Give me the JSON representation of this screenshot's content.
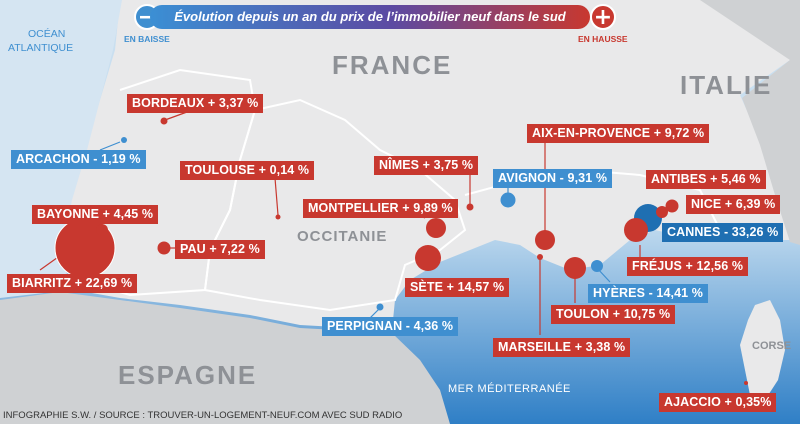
{
  "header": {
    "title": "Évolution depuis un an du prix de l’immobilier neuf dans le sud",
    "minus_symbol": "−",
    "plus_symbol": "+",
    "baisse_label": "EN BAISSE",
    "hausse_label": "EN HAUSSE",
    "colors": {
      "hausse": "#c8382f",
      "baisse": "#3f8fd0"
    }
  },
  "regions": {
    "france": "FRANCE",
    "italie": "ITALIE",
    "espagne": "ESPAGNE",
    "occitanie": "OCCITANIE",
    "corse": "CORSE"
  },
  "seas": {
    "atlantic_line1": "OCÉAN",
    "atlantic_line2": "ATLANTIQUE",
    "mediterranean": "MER MÉDITERRANÉE"
  },
  "cities": [
    {
      "label": "BORDEAUX + 3,37 %",
      "trend": "up",
      "change_pct": 3.37
    },
    {
      "label": "ARCACHON  - 1,19 %",
      "trend": "down",
      "change_pct": -1.19
    },
    {
      "label": "TOULOUSE + 0,14 %",
      "trend": "up",
      "change_pct": 0.14
    },
    {
      "label": "NÎMES + 3,75 %",
      "trend": "up",
      "change_pct": 3.75
    },
    {
      "label": "AIX-EN-PROVENCE + 9,72 %",
      "trend": "up",
      "change_pct": 9.72
    },
    {
      "label": "AVIGNON - 9,31 %",
      "trend": "down",
      "change_pct": -9.31
    },
    {
      "label": "ANTIBES + 5,46 %",
      "trend": "up",
      "change_pct": 5.46
    },
    {
      "label": "NICE + 6,39 %",
      "trend": "up",
      "change_pct": 6.39
    },
    {
      "label": "CANNES - 33,26 %",
      "trend": "down",
      "change_pct": -33.26
    },
    {
      "label": "BAYONNE + 4,45 %",
      "trend": "up",
      "change_pct": 4.45
    },
    {
      "label": "MONTPELLIER + 9,89 %",
      "trend": "up",
      "change_pct": 9.89
    },
    {
      "label": "PAU + 7,22 %",
      "trend": "up",
      "change_pct": 7.22
    },
    {
      "label": "BIARRITZ + 22,69 %",
      "trend": "up",
      "change_pct": 22.69
    },
    {
      "label": "SÈTE + 14,57 %",
      "trend": "up",
      "change_pct": 14.57
    },
    {
      "label": "FRÉJUS + 12,56 %",
      "trend": "up",
      "change_pct": 12.56
    },
    {
      "label": "HYÈRES - 14,41 %",
      "trend": "down",
      "change_pct": -14.41
    },
    {
      "label": "TOULON + 10,75 %",
      "trend": "up",
      "change_pct": 10.75
    },
    {
      "label": "PERPIGNAN - 4,36 %",
      "trend": "down",
      "change_pct": -4.36
    },
    {
      "label": "MARSEILLE + 3,38 %",
      "trend": "up",
      "change_pct": 3.38
    },
    {
      "label": "AJACCIO + 0,35%",
      "trend": "up",
      "change_pct": 0.35
    }
  ],
  "footer": "INFOGRAPHIE S.W. / SOURCE : TROUVER-UN-LOGEMENT-NEUF.COM AVEC SUD RADIO"
}
